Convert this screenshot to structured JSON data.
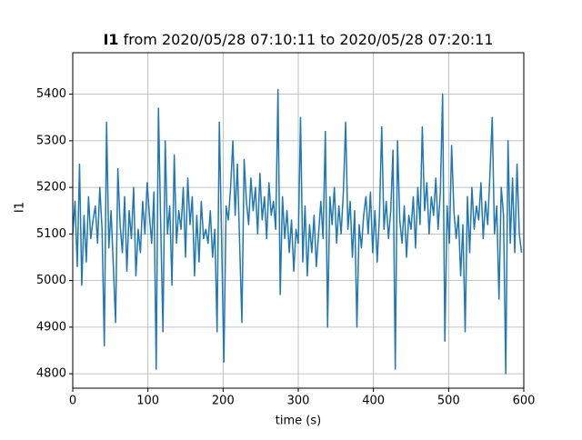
{
  "chart_data": {
    "type": "line",
    "title_name": "I1",
    "title": "from 2020/05/28 07:10:11 to 2020/05/28 07:20:11",
    "xlabel": "time (s)",
    "ylabel": "I1",
    "xlim": [
      0,
      600
    ],
    "ylim": [
      4769,
      5489
    ],
    "xticks": [
      0,
      100,
      200,
      300,
      400,
      500,
      600
    ],
    "yticks": [
      4800,
      4900,
      5000,
      5100,
      5200,
      5300,
      5400
    ],
    "grid": true,
    "x": [
      0,
      3,
      6,
      9,
      12,
      15,
      18,
      21,
      24,
      27,
      30,
      33,
      36,
      39,
      42,
      45,
      48,
      51,
      54,
      57,
      60,
      63,
      66,
      69,
      72,
      75,
      78,
      81,
      84,
      87,
      90,
      93,
      96,
      99,
      102,
      105,
      108,
      111,
      114,
      117,
      120,
      123,
      126,
      129,
      132,
      135,
      138,
      141,
      144,
      147,
      150,
      153,
      156,
      159,
      162,
      165,
      168,
      171,
      174,
      177,
      180,
      183,
      186,
      189,
      192,
      195,
      198,
      201,
      204,
      207,
      210,
      213,
      216,
      219,
      222,
      225,
      228,
      231,
      234,
      237,
      240,
      243,
      246,
      249,
      252,
      255,
      258,
      261,
      264,
      267,
      270,
      273,
      276,
      279,
      282,
      285,
      288,
      291,
      294,
      297,
      300,
      303,
      306,
      309,
      312,
      315,
      318,
      321,
      324,
      327,
      330,
      333,
      336,
      339,
      342,
      345,
      348,
      351,
      354,
      357,
      360,
      363,
      366,
      369,
      372,
      375,
      378,
      381,
      384,
      387,
      390,
      393,
      396,
      399,
      402,
      405,
      408,
      411,
      414,
      417,
      420,
      423,
      426,
      429,
      432,
      435,
      438,
      441,
      444,
      447,
      450,
      453,
      456,
      459,
      462,
      465,
      468,
      471,
      474,
      477,
      480,
      483,
      486,
      489,
      492,
      495,
      498,
      501,
      504,
      507,
      510,
      513,
      516,
      519,
      522,
      525,
      528,
      531,
      534,
      537,
      540,
      543,
      546,
      549,
      552,
      555,
      558,
      561,
      564,
      567,
      570,
      573,
      576,
      579,
      582,
      585,
      588,
      591,
      594,
      597
    ],
    "series": [
      {
        "name": "I1",
        "color": "#1f77b4",
        "values": [
          5100,
          5170,
          5030,
          5250,
          4990,
          5140,
          5040,
          5180,
          5090,
          5130,
          5160,
          5080,
          5200,
          5110,
          4860,
          5340,
          5070,
          5150,
          5030,
          4910,
          5240,
          5120,
          5060,
          5180,
          5020,
          5150,
          5090,
          5200,
          5010,
          5110,
          5060,
          5170,
          5100,
          5210,
          5140,
          5080,
          5190,
          4810,
          5370,
          5120,
          4890,
          5300,
          5100,
          5160,
          4990,
          5270,
          5080,
          5150,
          5110,
          5200,
          5050,
          5220,
          5120,
          5180,
          5010,
          5140,
          5040,
          5170,
          5090,
          5110,
          5080,
          5150,
          5050,
          5110,
          4890,
          5340,
          5090,
          4825,
          5160,
          5130,
          5200,
          5300,
          5140,
          5250,
          5080,
          4910,
          5260,
          5170,
          5120,
          5220,
          5150,
          5200,
          5100,
          5230,
          5130,
          5180,
          5090,
          5210,
          5140,
          5170,
          5110,
          5410,
          4970,
          5180,
          5090,
          5150,
          5060,
          5130,
          5020,
          5110,
          5080,
          5350,
          5040,
          5160,
          5010,
          5120,
          5060,
          5140,
          5030,
          5100,
          5170,
          5090,
          5320,
          4900,
          5180,
          5120,
          5200,
          5080,
          5160,
          5100,
          5190,
          5340,
          5110,
          5170,
          5050,
          5150,
          4900,
          5120,
          5070,
          5140,
          5180,
          5100,
          5190,
          5060,
          5150,
          5040,
          5140,
          5330,
          5110,
          5170,
          5090,
          5150,
          5280,
          4810,
          5300,
          5130,
          5080,
          5160,
          5050,
          5140,
          5110,
          5180,
          5070,
          5200,
          5120,
          5330,
          5150,
          5210,
          5100,
          5180,
          5140,
          5220,
          5110,
          5190,
          5400,
          4870,
          5160,
          5080,
          5290,
          5150,
          5090,
          5140,
          5010,
          5120,
          4890,
          5180,
          5060,
          5200,
          5110,
          5160,
          5130,
          5210,
          5090,
          5170,
          5120,
          5230,
          5350,
          5100,
          5160,
          4960,
          5200,
          5140,
          4800,
          5300,
          5080,
          5220,
          5060,
          5250,
          5100,
          5060
        ]
      }
    ]
  }
}
